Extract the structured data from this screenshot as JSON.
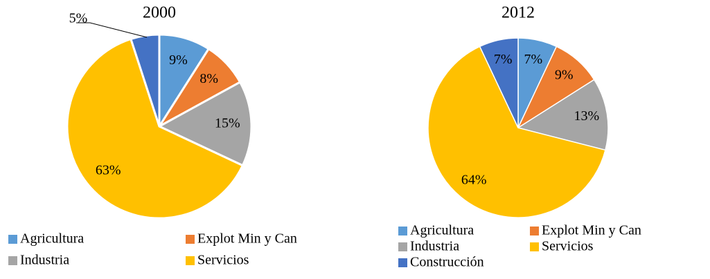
{
  "chart_data": [
    {
      "type": "pie",
      "title": "2000",
      "categories": [
        "Agricultura",
        "Explot Min y Can",
        "Industria",
        "Servicios",
        null
      ],
      "values": [
        9,
        8,
        15,
        63,
        5
      ],
      "value_labels": [
        "9%",
        "8%",
        "15%",
        "63%",
        "5%"
      ],
      "colors": [
        "#5b9bd5",
        "#ed7d31",
        "#a5a5a5",
        "#ffc000",
        "#4472c4"
      ]
    },
    {
      "type": "pie",
      "title": "2012",
      "categories": [
        "Agricultura",
        "Explot Min y Can",
        "Industria",
        "Servicios",
        "Construcción"
      ],
      "values": [
        7,
        9,
        13,
        64,
        7
      ],
      "value_labels": [
        "7%",
        "9%",
        "13%",
        "64%",
        "7%"
      ],
      "colors": [
        "#5b9bd5",
        "#ed7d31",
        "#a5a5a5",
        "#ffc000",
        "#4472c4"
      ]
    }
  ]
}
